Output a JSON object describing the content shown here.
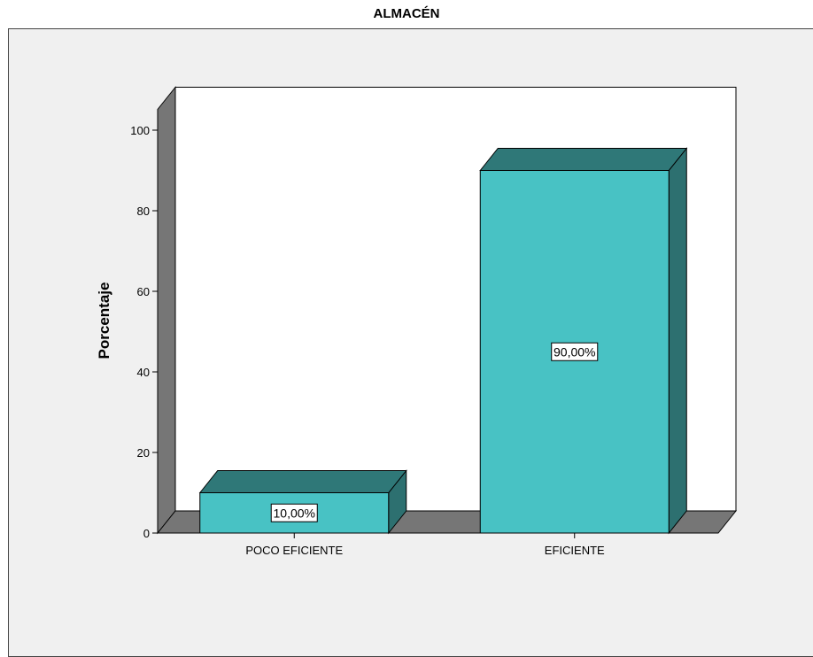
{
  "chart_data": {
    "type": "bar",
    "title": "ALMACÉN",
    "xlabel": "",
    "ylabel": "Porcentaje",
    "categories": [
      "POCO EFICIENTE",
      "EFICIENTE"
    ],
    "values": [
      10,
      90
    ],
    "data_labels": [
      "10,00%",
      "90,00%"
    ],
    "yticks": [
      0,
      20,
      40,
      60,
      80,
      100
    ],
    "ylim": [
      0,
      110
    ],
    "style": "3d",
    "colors": {
      "bar_front": "#48c2c4",
      "bar_top": "#2f7878",
      "bar_side": "#2d7070",
      "wall": "#ffffff",
      "wall_side": "#767676",
      "floor": "#767676",
      "background": "#f0f0f0"
    }
  }
}
